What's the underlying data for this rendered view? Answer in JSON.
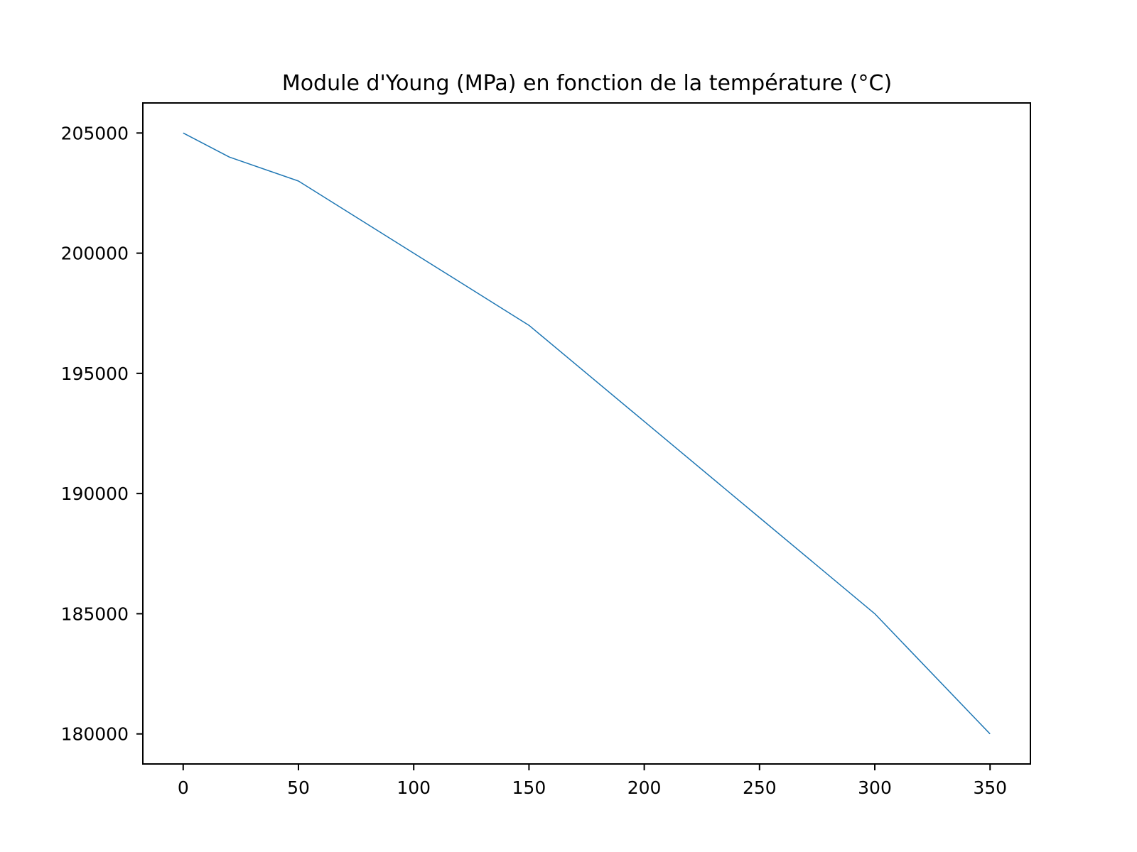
{
  "chart_data": {
    "type": "line",
    "title": "Module d'Young (MPa) en fonction de la température (°C)",
    "xlabel": "",
    "ylabel": "",
    "xlim": [
      -17.5,
      367.5
    ],
    "ylim": [
      178750,
      206250
    ],
    "xticks": [
      0,
      50,
      100,
      150,
      200,
      250,
      300,
      350
    ],
    "xtick_labels": [
      "0",
      "50",
      "100",
      "150",
      "200",
      "250",
      "300",
      "350"
    ],
    "yticks": [
      180000,
      185000,
      190000,
      195000,
      200000,
      205000
    ],
    "ytick_labels": [
      "180000",
      "185000",
      "190000",
      "195000",
      "200000",
      "205000"
    ],
    "grid": false,
    "legend": "none",
    "series": [
      {
        "color": "#1f77b4",
        "x": [
          0,
          20,
          50,
          100,
          150,
          200,
          250,
          300,
          350
        ],
        "y": [
          205000,
          204000,
          203000,
          200000,
          197000,
          193000,
          189000,
          185000,
          180000
        ]
      }
    ]
  }
}
